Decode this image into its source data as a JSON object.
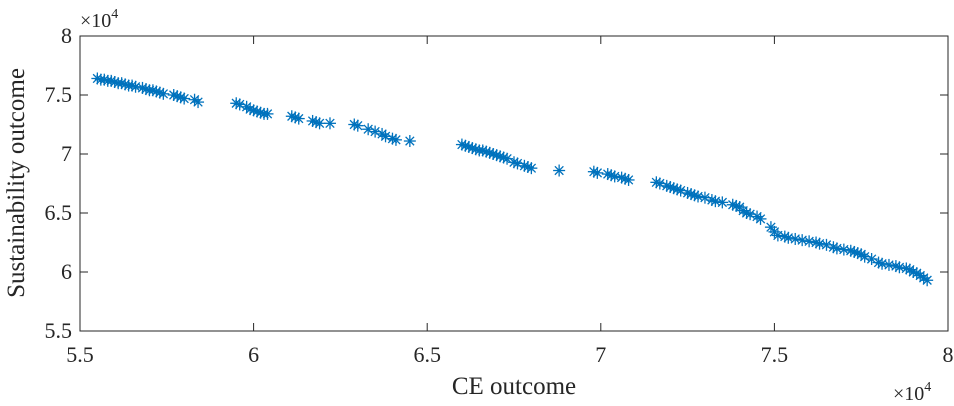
{
  "chart_data": {
    "type": "scatter",
    "marker": "asterisk",
    "color": "#0072BD",
    "xlabel": "CE outcome",
    "ylabel": "Sustainability outcome",
    "x_exponent_label": "×10",
    "x_exponent_power": "4",
    "y_exponent_label": "×10",
    "y_exponent_power": "4",
    "xlim": [
      5.5,
      8
    ],
    "ylim": [
      5.5,
      8
    ],
    "xticks": [
      5.5,
      6,
      6.5,
      7,
      7.5,
      8
    ],
    "yticks": [
      5.5,
      6,
      6.5,
      7,
      7.5,
      8
    ],
    "xtick_labels": [
      "5.5",
      "6",
      "6.5",
      "7",
      "7.5",
      "8"
    ],
    "ytick_labels": [
      "5.5",
      "6",
      "6.5",
      "7",
      "7.5",
      "8"
    ],
    "grid": false,
    "box": true,
    "series": [
      {
        "x": [
          5.55,
          5.56,
          5.57,
          5.58,
          5.59,
          5.6,
          5.61,
          5.62,
          5.63,
          5.64,
          5.65,
          5.66,
          5.68,
          5.69,
          5.7,
          5.71,
          5.72,
          5.73,
          5.74,
          5.77,
          5.78,
          5.79,
          5.8,
          5.83,
          5.84,
          5.95,
          5.96,
          5.98,
          5.99,
          6.0,
          6.01,
          6.02,
          6.03,
          6.04,
          6.11,
          6.12,
          6.13,
          6.17,
          6.18,
          6.19,
          6.22,
          6.29,
          6.3,
          6.33,
          6.35,
          6.37,
          6.38,
          6.4,
          6.41,
          6.45,
          6.6,
          6.61,
          6.62,
          6.63,
          6.64,
          6.65,
          6.66,
          6.67,
          6.68,
          6.69,
          6.7,
          6.71,
          6.72,
          6.73,
          6.75,
          6.76,
          6.78,
          6.79,
          6.8,
          6.88,
          6.98,
          6.99,
          7.02,
          7.03,
          7.04,
          7.06,
          7.07,
          7.08,
          7.16,
          7.17,
          7.19,
          7.2,
          7.21,
          7.22,
          7.23,
          7.25,
          7.26,
          7.27,
          7.28,
          7.3,
          7.32,
          7.33,
          7.35,
          7.38,
          7.39,
          7.4,
          7.41,
          7.42,
          7.43,
          7.45,
          7.46,
          7.49,
          7.5,
          7.51,
          7.53,
          7.54,
          7.56,
          7.58,
          7.6,
          7.62,
          7.63,
          7.65,
          7.67,
          7.68,
          7.7,
          7.72,
          7.73,
          7.74,
          7.75,
          7.76,
          7.78,
          7.8,
          7.81,
          7.83,
          7.85,
          7.86,
          7.88,
          7.89,
          7.9,
          7.91,
          7.92,
          7.93,
          7.94
        ],
        "y": [
          7.64,
          7.63,
          7.63,
          7.62,
          7.62,
          7.61,
          7.6,
          7.6,
          7.59,
          7.58,
          7.58,
          7.57,
          7.56,
          7.55,
          7.54,
          7.54,
          7.53,
          7.52,
          7.51,
          7.5,
          7.49,
          7.48,
          7.47,
          7.46,
          7.44,
          7.43,
          7.42,
          7.4,
          7.38,
          7.37,
          7.36,
          7.35,
          7.34,
          7.34,
          7.32,
          7.31,
          7.3,
          7.28,
          7.27,
          7.26,
          7.26,
          7.25,
          7.24,
          7.21,
          7.19,
          7.17,
          7.15,
          7.13,
          7.12,
          7.11,
          7.08,
          7.07,
          7.06,
          7.05,
          7.04,
          7.03,
          7.03,
          7.02,
          7.01,
          7.0,
          6.99,
          6.98,
          6.97,
          6.96,
          6.93,
          6.92,
          6.9,
          6.89,
          6.88,
          6.86,
          6.85,
          6.84,
          6.83,
          6.82,
          6.81,
          6.8,
          6.79,
          6.78,
          6.76,
          6.75,
          6.73,
          6.72,
          6.71,
          6.7,
          6.69,
          6.67,
          6.66,
          6.65,
          6.64,
          6.63,
          6.61,
          6.6,
          6.59,
          6.57,
          6.56,
          6.55,
          6.52,
          6.5,
          6.49,
          6.47,
          6.45,
          6.38,
          6.34,
          6.31,
          6.3,
          6.29,
          6.28,
          6.27,
          6.26,
          6.25,
          6.24,
          6.23,
          6.21,
          6.2,
          6.19,
          6.18,
          6.17,
          6.16,
          6.15,
          6.13,
          6.11,
          6.08,
          6.07,
          6.06,
          6.05,
          6.04,
          6.03,
          6.02,
          6.0,
          5.99,
          5.97,
          5.95,
          5.93
        ]
      }
    ]
  }
}
